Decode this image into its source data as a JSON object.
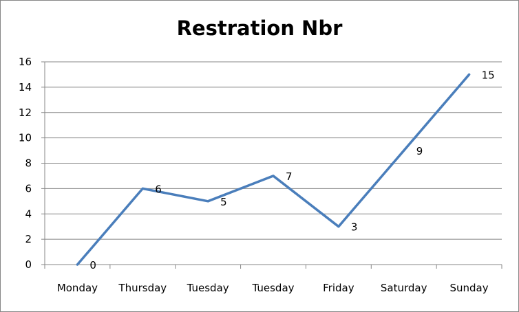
{
  "chart_data": {
    "type": "line",
    "title": "Restration Nbr",
    "categories": [
      "Monday",
      "Thursday",
      "Tuesday",
      "Tuesday",
      "Friday",
      "Saturday",
      "Sunday"
    ],
    "series": [
      {
        "values": [
          0,
          6,
          5,
          7,
          3,
          9,
          15
        ],
        "color": "#4a7ebb"
      }
    ],
    "ylim": [
      0,
      16
    ],
    "yticks": [
      0,
      2,
      4,
      6,
      8,
      10,
      12,
      14,
      16
    ],
    "grid": true,
    "legend": "none",
    "data_labels": true
  }
}
